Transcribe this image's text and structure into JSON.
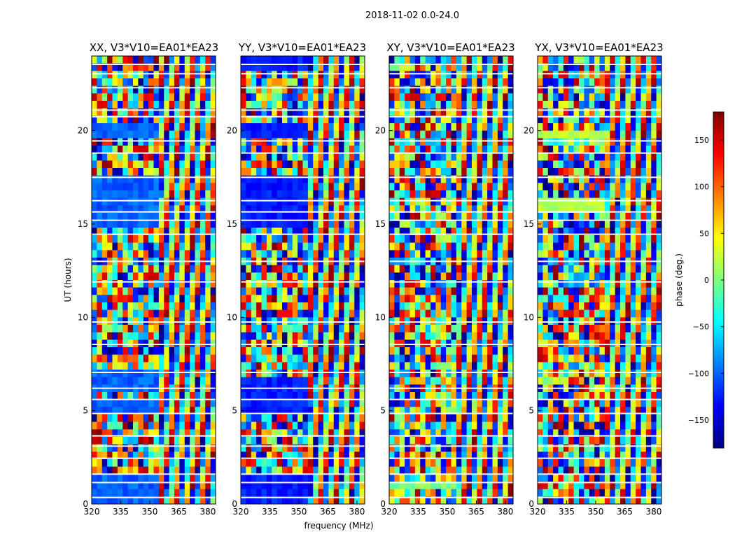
{
  "chart_data": {
    "type": "heatmap",
    "title": "2018-11-02 0.0-24.0",
    "xlabel": "frequency (MHz)",
    "ylabel": "UT (hours)",
    "xlim": [
      320,
      384
    ],
    "ylim": [
      0,
      24
    ],
    "xticks": [
      320,
      335,
      350,
      365,
      380
    ],
    "xtick_labels": [
      "320",
      "335",
      "350",
      "365",
      "380"
    ],
    "yticks": [
      0,
      5,
      10,
      15,
      20
    ],
    "ytick_labels": [
      "0",
      "5",
      "10",
      "15",
      "20"
    ],
    "panels": [
      {
        "title": "XX, V3*V10=EA01*EA23"
      },
      {
        "title": "YY, V3*V10=EA01*EA23"
      },
      {
        "title": "XY, V3*V10=EA01*EA23"
      },
      {
        "title": "YX, V3*V10=EA01*EA23"
      }
    ],
    "colorbar": {
      "label": "phase (deg.)",
      "range": [
        -180,
        180
      ],
      "ticks": [
        150,
        100,
        50,
        0,
        -50,
        -100,
        -150
      ],
      "tick_labels": [
        "150",
        "100",
        "50",
        "0",
        "−50",
        "−100",
        "−150"
      ],
      "colormap": "jet",
      "colors": [
        "#00007f",
        "#0000ff",
        "#007fff",
        "#00ffff",
        "#7fff7f",
        "#ffff00",
        "#ff7f00",
        "#ff0000",
        "#7f0000"
      ]
    }
  }
}
